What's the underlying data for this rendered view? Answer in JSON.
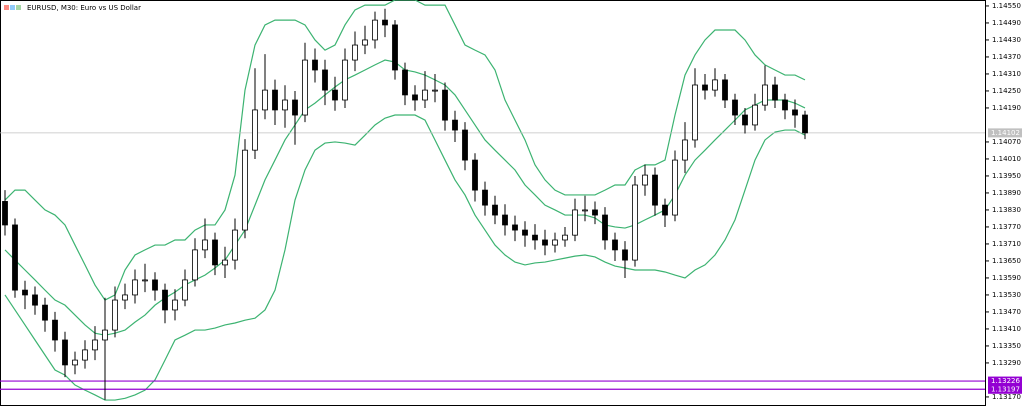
{
  "chart_data": {
    "type": "candlestick",
    "title": "EURUSD, M30:  Euro vs US Dollar",
    "bull_color": "#ffffff",
    "bear_color": "#000000",
    "open": [
      1.1386,
      1.13777,
      1.13547,
      1.1353,
      1.13494,
      1.13441,
      1.13371,
      1.13283,
      1.133,
      1.13336,
      1.13371,
      1.13406,
      1.13512,
      1.1353,
      1.13583,
      1.13583,
      1.13547,
      1.13477,
      1.13512,
      1.13583,
      1.13689,
      1.13724,
      1.13636,
      1.13653,
      1.13759,
      1.14041,
      1.14183,
      1.14253,
      1.14183,
      1.14218,
      1.14165,
      1.14359,
      1.14324,
      1.14253,
      1.14218,
      1.14359,
      1.14412,
      1.1443,
      1.145,
      1.14483,
      1.14324,
      1.14236,
      1.14218,
      1.14253,
      1.14253,
      1.14147,
      1.14112,
      1.14006,
      1.139,
      1.13847,
      1.13812,
      1.13777,
      1.13759,
      1.13741,
      1.13724,
      1.13706,
      1.13724,
      1.13741,
      1.1383,
      1.1383,
      1.13812,
      1.13724,
      1.13689,
      1.13653,
      1.13918,
      1.13953,
      1.13847,
      1.13812,
      1.14006,
      1.14077,
      1.14271,
      1.14253,
      1.14289,
      1.14218,
      1.14165,
      1.1413,
      1.142,
      1.14271,
      1.14218,
      1.14183,
      1.14165
    ],
    "high": [
      1.139,
      1.138,
      1.1358,
      1.1356,
      1.1352,
      1.1347,
      1.134,
      1.1333,
      1.1337,
      1.1342,
      1.1352,
      1.1356,
      1.1357,
      1.1362,
      1.1364,
      1.1361,
      1.1357,
      1.1355,
      1.1362,
      1.1373,
      1.138,
      1.1375,
      1.137,
      1.138,
      1.1408,
      1.1433,
      1.1438,
      1.1429,
      1.1427,
      1.1425,
      1.1442,
      1.144,
      1.1436,
      1.143,
      1.144,
      1.1446,
      1.1448,
      1.1453,
      1.1454,
      1.145,
      1.1435,
      1.1427,
      1.1432,
      1.1431,
      1.1428,
      1.1418,
      1.1414,
      1.1403,
      1.1393,
      1.1388,
      1.1385,
      1.1381,
      1.1379,
      1.1378,
      1.1376,
      1.1375,
      1.1377,
      1.1387,
      1.1388,
      1.1386,
      1.1384,
      1.1375,
      1.1372,
      1.1395,
      1.1399,
      1.1398,
      1.1387,
      1.1404,
      1.1414,
      1.1433,
      1.1431,
      1.1433,
      1.1431,
      1.1424,
      1.1419,
      1.1424,
      1.1434,
      1.143,
      1.1424,
      1.1422,
      1.1418
    ],
    "low": [
      1.1374,
      1.1352,
      1.1348,
      1.1346,
      1.134,
      1.1333,
      1.1324,
      1.1325,
      1.1327,
      1.133,
      1.1316,
      1.1338,
      1.1348,
      1.135,
      1.1354,
      1.1351,
      1.1343,
      1.1344,
      1.1349,
      1.1356,
      1.1366,
      1.136,
      1.1359,
      1.1362,
      1.1373,
      1.1401,
      1.1415,
      1.1413,
      1.1412,
      1.1406,
      1.1414,
      1.1428,
      1.142,
      1.1418,
      1.1419,
      1.1432,
      1.1438,
      1.144,
      1.1444,
      1.1429,
      1.142,
      1.1418,
      1.1419,
      1.1421,
      1.1411,
      1.1407,
      1.1397,
      1.1386,
      1.1381,
      1.1378,
      1.1374,
      1.1372,
      1.137,
      1.1369,
      1.1367,
      1.1368,
      1.137,
      1.1372,
      1.1379,
      1.1378,
      1.1369,
      1.1365,
      1.1359,
      1.1363,
      1.1388,
      1.1381,
      1.1377,
      1.1379,
      1.1396,
      1.1405,
      1.1422,
      1.1423,
      1.1419,
      1.1413,
      1.141,
      1.1411,
      1.1418,
      1.1419,
      1.1415,
      1.1412,
      1.1408
    ],
    "close": [
      1.13777,
      1.13547,
      1.1353,
      1.13494,
      1.13441,
      1.13371,
      1.13283,
      1.133,
      1.13336,
      1.13371,
      1.13406,
      1.13512,
      1.1353,
      1.13583,
      1.13583,
      1.13547,
      1.13477,
      1.13512,
      1.13583,
      1.13689,
      1.13724,
      1.13636,
      1.13653,
      1.13759,
      1.14041,
      1.14183,
      1.14253,
      1.14183,
      1.14218,
      1.14165,
      1.14359,
      1.14324,
      1.14253,
      1.14218,
      1.14359,
      1.14412,
      1.1443,
      1.145,
      1.14483,
      1.14324,
      1.14236,
      1.14218,
      1.14253,
      1.14253,
      1.14147,
      1.14112,
      1.14006,
      1.139,
      1.13847,
      1.13812,
      1.13777,
      1.13759,
      1.13741,
      1.13724,
      1.13706,
      1.13724,
      1.13741,
      1.1383,
      1.1383,
      1.13812,
      1.13724,
      1.13689,
      1.13653,
      1.13918,
      1.13953,
      1.13847,
      1.13812,
      1.14006,
      1.14077,
      1.14271,
      1.14253,
      1.14289,
      1.14218,
      1.14165,
      1.1413,
      1.142,
      1.14271,
      1.14218,
      1.14183,
      1.14165,
      1.14102
    ],
    "overlays": [
      {
        "type": "line",
        "color": "#3cb371",
        "values": [
          1.13865,
          1.139,
          1.139,
          1.13865,
          1.1383,
          1.13812,
          1.13777,
          1.13706,
          1.13636,
          1.13565,
          1.13512,
          1.1353,
          1.13618,
          1.13671,
          1.13689,
          1.13706,
          1.13706,
          1.13724,
          1.13724,
          1.13759,
          1.13777,
          1.13777,
          1.1383,
          1.13953,
          1.14253,
          1.14412,
          1.14483,
          1.145,
          1.145,
          1.145,
          1.14483,
          1.1443,
          1.14394,
          1.14412,
          1.14483,
          1.14536,
          1.14553,
          1.14553,
          1.14553,
          1.14571,
          1.14571,
          1.14571,
          1.14553,
          1.14553,
          1.14553,
          1.14483,
          1.14412,
          1.14394,
          1.14377,
          1.14324,
          1.14218,
          1.14147,
          1.14077,
          1.13989,
          1.13936,
          1.139,
          1.13883,
          1.13883,
          1.13883,
          1.13883,
          1.139,
          1.13918,
          1.13918,
          1.13971,
          1.13989,
          1.13989,
          1.14006,
          1.14165,
          1.14306,
          1.14377,
          1.1443,
          1.14465,
          1.14465,
          1.14465,
          1.1443,
          1.14377,
          1.14342,
          1.14324,
          1.14306,
          1.14306,
          1.14289
        ]
      },
      {
        "type": "line",
        "color": "#3cb371",
        "values": [
          1.13689,
          1.13653,
          1.13618,
          1.13583,
          1.13547,
          1.13512,
          1.13494,
          1.13459,
          1.13424,
          1.13395,
          1.13388,
          1.13395,
          1.13406,
          1.13434,
          1.13459,
          1.13494,
          1.13519,
          1.1354,
          1.13565,
          1.13583,
          1.136,
          1.13625,
          1.13653,
          1.13706,
          1.13759,
          1.13847,
          1.13936,
          1.14006,
          1.14077,
          1.1413,
          1.14183,
          1.14207,
          1.14236,
          1.14264,
          1.14289,
          1.14306,
          1.14324,
          1.14342,
          1.14359,
          1.14352,
          1.14324,
          1.14317,
          1.14306,
          1.14289,
          1.14271,
          1.14236,
          1.14183,
          1.1413,
          1.14077,
          1.14041,
          1.14006,
          1.13971,
          1.13918,
          1.13883,
          1.13847,
          1.1383,
          1.13812,
          1.13812,
          1.13812,
          1.13802,
          1.13777,
          1.1377,
          1.13766,
          1.13777,
          1.13795,
          1.13812,
          1.1383,
          1.13883,
          1.13953,
          1.14006,
          1.14041,
          1.14077,
          1.14112,
          1.14147,
          1.14183,
          1.142,
          1.14218,
          1.14218,
          1.14218,
          1.14207,
          1.1419
        ]
      },
      {
        "type": "line",
        "color": "#3cb371",
        "values": [
          1.1353,
          1.13477,
          1.13424,
          1.13371,
          1.13318,
          1.13265,
          1.13247,
          1.13212,
          1.13194,
          1.13177,
          1.13159,
          1.13159,
          1.13165,
          1.13177,
          1.13194,
          1.1323,
          1.133,
          1.13371,
          1.13388,
          1.13406,
          1.13406,
          1.13413,
          1.13424,
          1.13431,
          1.13441,
          1.13448,
          1.13477,
          1.13547,
          1.13689,
          1.13865,
          1.13971,
          1.14041,
          1.14066,
          1.1407,
          1.14066,
          1.14059,
          1.14094,
          1.1413,
          1.14154,
          1.14165,
          1.14165,
          1.14165,
          1.14147,
          1.14077,
          1.14006,
          1.13936,
          1.13883,
          1.13812,
          1.13759,
          1.13706,
          1.13671,
          1.13646,
          1.13636,
          1.13643,
          1.13646,
          1.13653,
          1.1366,
          1.13667,
          1.13671,
          1.13664,
          1.13646,
          1.13632,
          1.13625,
          1.13618,
          1.13618,
          1.13618,
          1.13611,
          1.136,
          1.1359,
          1.13618,
          1.13636,
          1.13671,
          1.13724,
          1.13795,
          1.139,
          1.14006,
          1.14077,
          1.14105,
          1.14112,
          1.14112,
          1.14094
        ]
      }
    ],
    "hlines": [
      {
        "value": 1.14102,
        "color": "#c0c0c0"
      },
      {
        "value": 1.13226,
        "color": "#9400d3"
      },
      {
        "value": 1.13197,
        "color": "#9400d3"
      }
    ],
    "ylim": [
      1.13138,
      1.14571
    ],
    "yticks": [
      {
        "value": 1.1455,
        "label": "1.14550"
      },
      {
        "value": 1.1449,
        "label": "1.14490"
      },
      {
        "value": 1.1443,
        "label": "1.14430"
      },
      {
        "value": 1.1437,
        "label": "1.14370"
      },
      {
        "value": 1.1431,
        "label": "1.14310"
      },
      {
        "value": 1.1425,
        "label": "1.14250"
      },
      {
        "value": 1.1419,
        "label": "1.14190"
      },
      {
        "value": 1.1407,
        "label": "1.14070"
      },
      {
        "value": 1.1401,
        "label": "1.14010"
      },
      {
        "value": 1.1395,
        "label": "1.13950"
      },
      {
        "value": 1.1389,
        "label": "1.13890"
      },
      {
        "value": 1.1383,
        "label": "1.13830"
      },
      {
        "value": 1.1377,
        "label": "1.13770"
      },
      {
        "value": 1.1371,
        "label": "1.13710"
      },
      {
        "value": 1.1365,
        "label": "1.13650"
      },
      {
        "value": 1.1359,
        "label": "1.13590"
      },
      {
        "value": 1.1353,
        "label": "1.13530"
      },
      {
        "value": 1.1347,
        "label": "1.13470"
      },
      {
        "value": 1.1341,
        "label": "1.13410"
      },
      {
        "value": 1.1335,
        "label": "1.13350"
      },
      {
        "value": 1.1329,
        "label": "1.13290"
      },
      {
        "value": 1.1317,
        "label": "1.13170"
      }
    ]
  }
}
